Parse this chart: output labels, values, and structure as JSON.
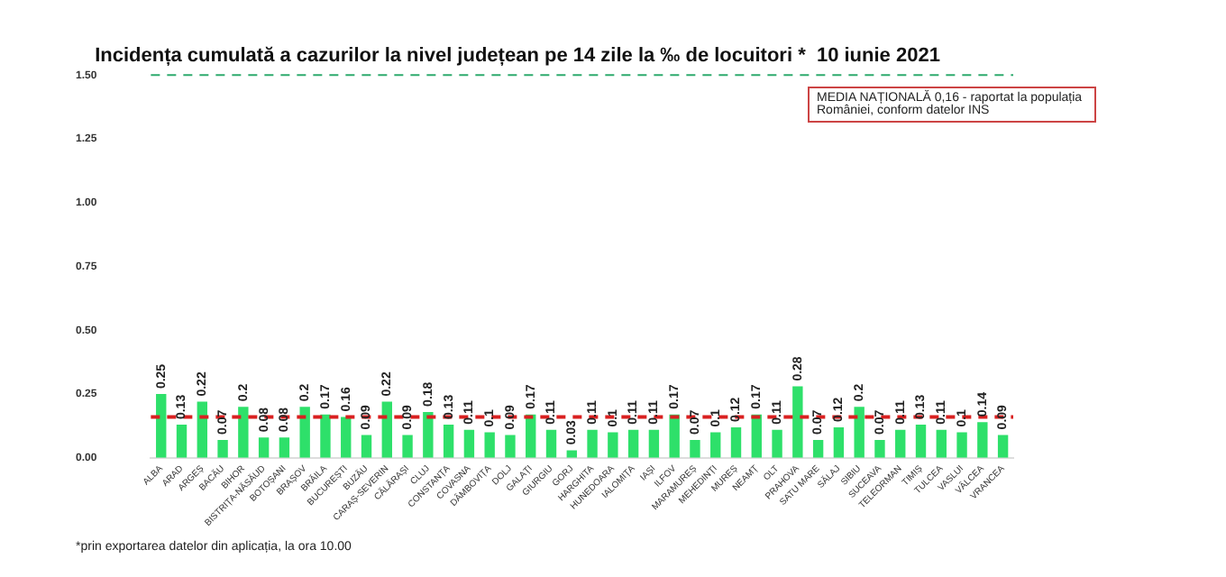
{
  "chart_data": {
    "type": "bar",
    "title": "Incidența cumulată a cazurilor la nivel județean pe 14 zile la ‰ de locuitori *  10 iunie 2021",
    "categories": [
      "ALBA",
      "ARAD",
      "ARGEȘ",
      "BACĂU",
      "BIHOR",
      "BISTRIȚA-NĂSĂUD",
      "BOTOȘANI",
      "BRAȘOV",
      "BRĂILA",
      "BUCUREȘTI",
      "BUZĂU",
      "CARAȘ-SEVERIN",
      "CĂLĂRAȘI",
      "CLUJ",
      "CONSTANȚA",
      "COVASNA",
      "DÂMBOVIȚA",
      "DOLJ",
      "GALAȚI",
      "GIURGIU",
      "GORJ",
      "HARGHITA",
      "HUNEDOARA",
      "IALOMIȚA",
      "IAȘI",
      "ILFOV",
      "MARAMUREȘ",
      "MEHEDINȚI",
      "MUREȘ",
      "NEAMȚ",
      "OLT",
      "PRAHOVA",
      "SATU MARE",
      "SĂLAJ",
      "SIBIU",
      "SUCEAVA",
      "TELEORMAN",
      "TIMIȘ",
      "TULCEA",
      "VASLUI",
      "VÂLCEA",
      "VRANCEA"
    ],
    "values": [
      0.25,
      0.13,
      0.22,
      0.07,
      0.2,
      0.08,
      0.08,
      0.2,
      0.17,
      0.16,
      0.09,
      0.22,
      0.09,
      0.18,
      0.13,
      0.11,
      0.1,
      0.09,
      0.17,
      0.11,
      0.03,
      0.11,
      0.1,
      0.11,
      0.11,
      0.17,
      0.07,
      0.1,
      0.12,
      0.17,
      0.11,
      0.28,
      0.07,
      0.12,
      0.2,
      0.07,
      0.11,
      0.13,
      0.11,
      0.1,
      0.14,
      0.09
    ],
    "color": "#2ee06a",
    "data_labels": true,
    "ylim": [
      0,
      1.5
    ],
    "yticks": [
      {
        "value": 0,
        "label": "0.00"
      },
      {
        "value": 0.25,
        "label": "0.25"
      },
      {
        "value": 0.5,
        "label": "0.50"
      },
      {
        "value": 0.75,
        "label": "0.75"
      },
      {
        "value": 1,
        "label": "1.00"
      },
      {
        "value": 1.25,
        "label": "1.25"
      },
      {
        "value": 1.5,
        "label": "1.50"
      }
    ],
    "grid": false,
    "ref_lines": [
      {
        "axis": "y",
        "value": 1.5,
        "color": "#2eaa6e",
        "line_style": "dashed"
      },
      {
        "axis": "y",
        "value": 0.16,
        "color": "#d92020",
        "line_style": "dashed"
      }
    ],
    "annotations": [
      "MEDIA NAȚIONALĂ 0,16 - raportat la populația României, conform datelor INS",
      "*prin exportarea datelor din aplicația, la ora 10.00"
    ]
  }
}
